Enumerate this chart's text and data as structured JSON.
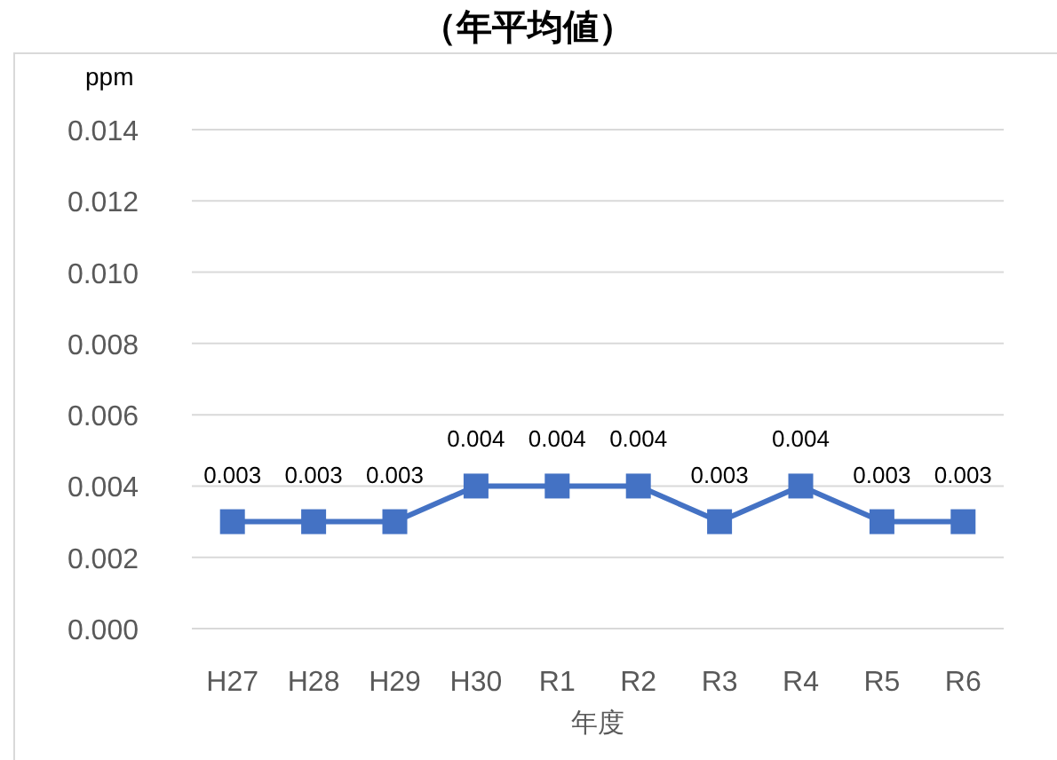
{
  "chart_data": {
    "type": "line",
    "title": "（年平均値）",
    "ylabel": "ppm",
    "xlabel": "年度",
    "categories": [
      "H27",
      "H28",
      "H29",
      "H30",
      "R1",
      "R2",
      "R3",
      "R4",
      "R5",
      "R6"
    ],
    "series": [
      {
        "color": "#4472c4",
        "values": [
          0.003,
          0.003,
          0.003,
          0.004,
          0.004,
          0.004,
          0.003,
          0.004,
          0.003,
          0.003
        ]
      }
    ],
    "ylim": [
      0,
      0.014
    ],
    "yticks": [
      "0.000",
      "0.002",
      "0.004",
      "0.006",
      "0.008",
      "0.010",
      "0.012",
      "0.014"
    ],
    "grid": "y",
    "marker": "square",
    "line_style": "solid",
    "data_labels": true
  }
}
